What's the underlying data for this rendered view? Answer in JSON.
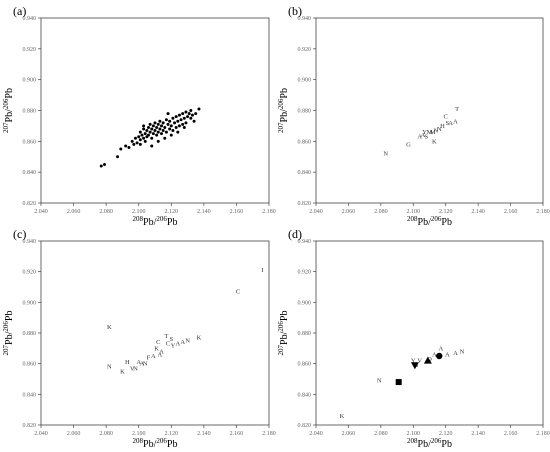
{
  "chart_data": [
    {
      "type": "scatter",
      "panel_label": "(a)",
      "xlabel": {
        "sup": "208",
        "main1": "Pb/",
        "sup2": "206",
        "main2": "Pb"
      },
      "ylabel": {
        "sup": "207",
        "main1": "Pb/",
        "sup2": "206",
        "main2": "Pb"
      },
      "xlim": [
        2.04,
        2.18
      ],
      "ylim": [
        0.82,
        0.94
      ],
      "x_ticks": [
        "2.040",
        "2.060",
        "2.080",
        "2.100",
        "2.120",
        "2.140",
        "2.160",
        "2.180"
      ],
      "y_ticks": [
        "0.820",
        "0.840",
        "0.860",
        "0.880",
        "0.900",
        "0.920",
        "0.940"
      ],
      "grid": false,
      "marker": "dot",
      "points": [
        [
          2.077,
          0.844
        ],
        [
          2.079,
          0.845
        ],
        [
          2.087,
          0.85
        ],
        [
          2.089,
          0.855
        ],
        [
          2.092,
          0.857
        ],
        [
          2.094,
          0.856
        ],
        [
          2.096,
          0.86
        ],
        [
          2.097,
          0.858
        ],
        [
          2.098,
          0.862
        ],
        [
          2.099,
          0.859
        ],
        [
          2.1,
          0.863
        ],
        [
          2.101,
          0.861
        ],
        [
          2.101,
          0.866
        ],
        [
          2.102,
          0.864
        ],
        [
          2.103,
          0.862
        ],
        [
          2.103,
          0.868
        ],
        [
          2.104,
          0.865
        ],
        [
          2.104,
          0.86
        ],
        [
          2.105,
          0.867
        ],
        [
          2.105,
          0.863
        ],
        [
          2.106,
          0.869
        ],
        [
          2.106,
          0.864
        ],
        [
          2.107,
          0.866
        ],
        [
          2.107,
          0.871
        ],
        [
          2.108,
          0.862
        ],
        [
          2.108,
          0.868
        ],
        [
          2.109,
          0.865
        ],
        [
          2.109,
          0.87
        ],
        [
          2.11,
          0.867
        ],
        [
          2.11,
          0.872
        ],
        [
          2.111,
          0.864
        ],
        [
          2.111,
          0.869
        ],
        [
          2.112,
          0.871
        ],
        [
          2.112,
          0.866
        ],
        [
          2.113,
          0.873
        ],
        [
          2.113,
          0.868
        ],
        [
          2.114,
          0.87
        ],
        [
          2.114,
          0.865
        ],
        [
          2.115,
          0.872
        ],
        [
          2.115,
          0.867
        ],
        [
          2.116,
          0.869
        ],
        [
          2.117,
          0.874
        ],
        [
          2.117,
          0.866
        ],
        [
          2.118,
          0.871
        ],
        [
          2.119,
          0.868
        ],
        [
          2.119,
          0.873
        ],
        [
          2.12,
          0.87
        ],
        [
          2.121,
          0.875
        ],
        [
          2.121,
          0.867
        ],
        [
          2.122,
          0.872
        ],
        [
          2.123,
          0.869
        ],
        [
          2.123,
          0.876
        ],
        [
          2.124,
          0.873
        ],
        [
          2.125,
          0.87
        ],
        [
          2.125,
          0.877
        ],
        [
          2.126,
          0.874
        ],
        [
          2.127,
          0.871
        ],
        [
          2.127,
          0.878
        ],
        [
          2.128,
          0.875
        ],
        [
          2.129,
          0.872
        ],
        [
          2.129,
          0.879
        ],
        [
          2.13,
          0.876
        ],
        [
          2.131,
          0.878
        ],
        [
          2.132,
          0.875
        ],
        [
          2.132,
          0.88
        ],
        [
          2.133,
          0.877
        ],
        [
          2.135,
          0.878
        ],
        [
          2.137,
          0.881
        ],
        [
          2.108,
          0.857
        ],
        [
          2.112,
          0.86
        ],
        [
          2.116,
          0.862
        ],
        [
          2.101,
          0.858
        ],
        [
          2.12,
          0.864
        ],
        [
          2.124,
          0.866
        ],
        [
          2.118,
          0.878
        ],
        [
          2.103,
          0.87
        ],
        [
          2.128,
          0.869
        ],
        [
          2.134,
          0.873
        ]
      ]
    },
    {
      "type": "scatter",
      "panel_label": "(b)",
      "xlabel": {
        "sup": "208",
        "main1": "Pb/",
        "sup2": "206",
        "main2": "Pb"
      },
      "ylabel": {
        "sup": "207",
        "main1": "Pb/",
        "sup2": "206",
        "main2": "Pb"
      },
      "xlim": [
        2.04,
        2.18
      ],
      "ylim": [
        0.82,
        0.94
      ],
      "x_ticks": [
        "2.040",
        "2.060",
        "2.080",
        "2.100",
        "2.120",
        "2.140",
        "2.160",
        "2.180"
      ],
      "y_ticks": [
        "0.820",
        "0.840",
        "0.860",
        "0.880",
        "0.900",
        "0.920",
        "0.940"
      ],
      "grid": false,
      "marker": "letter",
      "points": [
        [
          2.083,
          0.852,
          "N"
        ],
        [
          2.097,
          0.858,
          "G"
        ],
        [
          2.104,
          0.863,
          "A"
        ],
        [
          2.106,
          0.864,
          "A"
        ],
        [
          2.108,
          0.863,
          "S"
        ],
        [
          2.107,
          0.866,
          "Y"
        ],
        [
          2.11,
          0.866,
          "M"
        ],
        [
          2.112,
          0.866,
          "M"
        ],
        [
          2.114,
          0.867,
          "N"
        ],
        [
          2.113,
          0.86,
          "K"
        ],
        [
          2.116,
          0.868,
          "N"
        ],
        [
          2.118,
          0.87,
          "H"
        ],
        [
          2.12,
          0.876,
          "C"
        ],
        [
          2.121,
          0.872,
          "S"
        ],
        [
          2.123,
          0.872,
          "A"
        ],
        [
          2.127,
          0.881,
          "T"
        ],
        [
          2.126,
          0.873,
          "A"
        ]
      ]
    },
    {
      "type": "scatter",
      "panel_label": "(c)",
      "xlabel": {
        "sup": "208",
        "main1": "Pb/",
        "sup2": "206",
        "main2": "Pb"
      },
      "ylabel": {
        "sup": "207",
        "main1": "Pb/",
        "sup2": "206",
        "main2": "Pb"
      },
      "xlim": [
        2.04,
        2.18
      ],
      "ylim": [
        0.82,
        0.94
      ],
      "x_ticks": [
        "2.040",
        "2.060",
        "2.080",
        "2.100",
        "2.120",
        "2.140",
        "2.160",
        "2.180"
      ],
      "y_ticks": [
        "0.820",
        "0.840",
        "0.860",
        "0.880",
        "0.900",
        "0.920",
        "0.940"
      ],
      "grid": false,
      "marker": "letter",
      "points": [
        [
          2.082,
          0.884,
          "K"
        ],
        [
          2.082,
          0.858,
          "N"
        ],
        [
          2.09,
          0.855,
          "K"
        ],
        [
          2.093,
          0.861,
          "H"
        ],
        [
          2.096,
          0.857,
          "V"
        ],
        [
          2.098,
          0.857,
          "N"
        ],
        [
          2.1,
          0.861,
          "A"
        ],
        [
          2.102,
          0.86,
          "A"
        ],
        [
          2.104,
          0.86,
          "N"
        ],
        [
          2.106,
          0.864,
          "F"
        ],
        [
          2.109,
          0.865,
          "A"
        ],
        [
          2.111,
          0.87,
          "K"
        ],
        [
          2.113,
          0.866,
          "A"
        ],
        [
          2.112,
          0.874,
          "C"
        ],
        [
          2.114,
          0.868,
          "A"
        ],
        [
          2.117,
          0.878,
          "T"
        ],
        [
          2.118,
          0.873,
          "C"
        ],
        [
          2.12,
          0.876,
          "S"
        ],
        [
          2.121,
          0.872,
          "Y"
        ],
        [
          2.124,
          0.873,
          "A"
        ],
        [
          2.127,
          0.874,
          "A"
        ],
        [
          2.13,
          0.875,
          "N"
        ],
        [
          2.137,
          0.877,
          "K"
        ],
        [
          2.161,
          0.907,
          "C"
        ],
        [
          2.176,
          0.921,
          "I"
        ]
      ]
    },
    {
      "type": "scatter",
      "panel_label": "(d)",
      "xlabel": {
        "sup": "208",
        "main1": "Pb/",
        "sup2": "206",
        "main2": "Pb"
      },
      "ylabel": {
        "sup": "207",
        "main1": "Pb/",
        "sup2": "206",
        "main2": "Pb"
      },
      "xlim": [
        2.04,
        2.18
      ],
      "ylim": [
        0.82,
        0.94
      ],
      "x_ticks": [
        "2.040",
        "2.060",
        "2.080",
        "2.100",
        "2.120",
        "2.140",
        "2.160",
        "2.180"
      ],
      "y_ticks": [
        "0.820",
        "0.840",
        "0.860",
        "0.880",
        "0.900",
        "0.920",
        "0.940"
      ],
      "grid": false,
      "marker": "mixed",
      "points": [
        [
          2.056,
          0.826,
          "K"
        ],
        [
          2.079,
          0.849,
          "N"
        ],
        [
          2.1,
          0.862,
          "Y"
        ],
        [
          2.102,
          0.859,
          "S"
        ],
        [
          2.104,
          0.862,
          "V"
        ],
        [
          2.11,
          0.863,
          "O"
        ],
        [
          2.113,
          0.866,
          "A"
        ],
        [
          2.117,
          0.87,
          "A"
        ],
        [
          2.121,
          0.866,
          "A"
        ],
        [
          2.126,
          0.867,
          "A"
        ],
        [
          2.13,
          0.868,
          "N"
        ]
      ],
      "symbols": [
        {
          "shape": "square",
          "x": 2.091,
          "y": 0.848
        },
        {
          "shape": "triangle-down",
          "x": 2.101,
          "y": 0.859
        },
        {
          "shape": "triangle-up",
          "x": 2.109,
          "y": 0.862
        },
        {
          "shape": "circle",
          "x": 2.116,
          "y": 0.865
        }
      ]
    }
  ]
}
